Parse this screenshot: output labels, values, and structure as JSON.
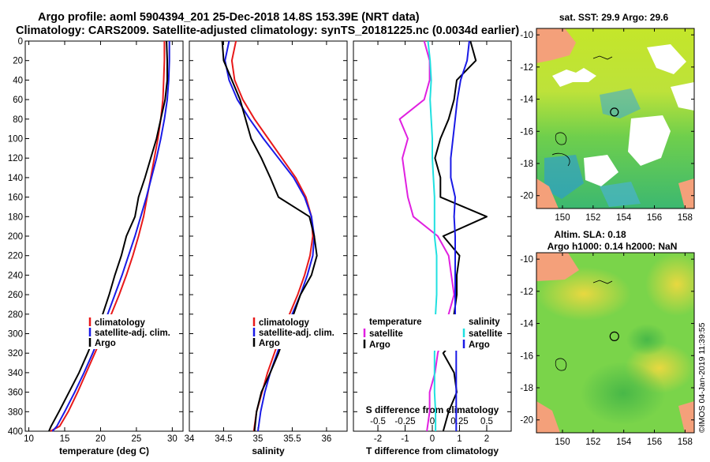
{
  "header": {
    "line1": "Argo profile: aoml 5904394_201 25-Dec-2018 14.8S 153.39E (NRT data)",
    "line2": "Climatology: CARS2009. Satellite-adjusted climatology: synTS_20181225.nc (0.0034d earlier)"
  },
  "colors": {
    "climatology": "#e8191a",
    "satellite": "#1a1ae6",
    "argo": "#000000",
    "temp_diff": "#e020e0",
    "sal_diff": "#20e0e0"
  },
  "chart_data": [
    {
      "type": "line",
      "title": "",
      "xlabel": "temperature (deg C)",
      "ylabel": "",
      "xlim": [
        9.5,
        31.5
      ],
      "ylim": [
        400,
        0
      ],
      "xticks": [
        "10",
        "15",
        "20",
        "25",
        "30"
      ],
      "yticks": [
        "0",
        "20",
        "40",
        "60",
        "80",
        "100",
        "120",
        "140",
        "160",
        "180",
        "200",
        "220",
        "240",
        "260",
        "280",
        "300",
        "320",
        "340",
        "360",
        "380",
        "400"
      ],
      "legend": [
        "climatology",
        "satellite-adj. clim.",
        "Argo"
      ],
      "series": [
        {
          "name": "climatology",
          "color": "#e8191a",
          "x": [
            28.9,
            28.9,
            28.8,
            28.7,
            28.4,
            28.0,
            27.5,
            27.0,
            26.5,
            26.0,
            25.3,
            24.5,
            23.6,
            22.6,
            21.5,
            20.4,
            19.2,
            18.0,
            16.8,
            15.5,
            14.3,
            13.0
          ],
          "y": [
            0,
            20,
            40,
            60,
            80,
            100,
            120,
            140,
            160,
            180,
            200,
            220,
            240,
            260,
            280,
            300,
            320,
            340,
            360,
            380,
            395,
            400
          ]
        },
        {
          "name": "satellite-adj. clim.",
          "color": "#1a1ae6",
          "x": [
            29.6,
            29.6,
            29.5,
            29.3,
            28.9,
            28.4,
            27.8,
            27.1,
            26.4,
            25.6,
            24.8,
            23.9,
            23.0,
            22.0,
            21.0,
            20.0,
            18.9,
            17.7,
            16.4,
            15.0,
            13.9,
            13.3
          ],
          "y": [
            0,
            20,
            40,
            60,
            80,
            100,
            120,
            140,
            160,
            180,
            200,
            220,
            240,
            260,
            280,
            300,
            320,
            340,
            360,
            380,
            395,
            400
          ]
        },
        {
          "name": "Argo",
          "color": "#000000",
          "x": [
            29.2,
            29.3,
            29.3,
            29.0,
            28.4,
            27.8,
            27.0,
            26.2,
            25.3,
            24.8,
            23.6,
            22.9,
            22.0,
            21.2,
            20.3,
            19.3,
            18.2,
            17.0,
            15.6,
            14.2,
            13.1,
            12.8
          ],
          "y": [
            0,
            20,
            40,
            60,
            80,
            100,
            120,
            140,
            160,
            180,
            200,
            220,
            240,
            260,
            280,
            300,
            320,
            340,
            360,
            380,
            395,
            400
          ]
        }
      ]
    },
    {
      "type": "line",
      "title": "",
      "xlabel": "salinity",
      "ylabel": "",
      "xlim": [
        34,
        36.3
      ],
      "ylim": [
        400,
        0
      ],
      "xticks": [
        "34",
        "34.5",
        "35",
        "35.5",
        "36"
      ],
      "legend": [
        "climatology",
        "satellite-adj. clim.",
        "Argo"
      ],
      "series": [
        {
          "name": "climatology",
          "color": "#e8191a",
          "x": [
            34.68,
            34.62,
            34.66,
            34.78,
            34.95,
            35.15,
            35.35,
            35.55,
            35.7,
            35.78,
            35.8,
            35.76,
            35.68,
            35.58,
            35.46,
            35.34,
            35.24,
            35.14,
            35.06,
            34.98,
            34.94
          ],
          "y": [
            0,
            20,
            40,
            60,
            80,
            100,
            120,
            140,
            160,
            180,
            200,
            220,
            240,
            260,
            280,
            300,
            320,
            340,
            360,
            380,
            400
          ]
        },
        {
          "name": "satellite-adj. clim.",
          "color": "#1a1ae6",
          "x": [
            34.58,
            34.52,
            34.58,
            34.7,
            34.88,
            35.08,
            35.3,
            35.52,
            35.68,
            35.78,
            35.82,
            35.8,
            35.72,
            35.62,
            35.5,
            35.38,
            35.28,
            35.18,
            35.1,
            35.04,
            35.0
          ],
          "y": [
            0,
            20,
            40,
            60,
            80,
            100,
            120,
            140,
            160,
            180,
            200,
            220,
            240,
            260,
            280,
            300,
            320,
            340,
            360,
            380,
            400
          ]
        },
        {
          "name": "Argo",
          "color": "#000000",
          "x": [
            34.48,
            34.5,
            34.62,
            34.74,
            34.82,
            34.9,
            35.05,
            35.18,
            35.3,
            35.75,
            35.82,
            35.86,
            35.78,
            35.62,
            35.52,
            35.4,
            35.3,
            35.18,
            35.05,
            34.98,
            34.95
          ],
          "y": [
            0,
            20,
            40,
            60,
            80,
            100,
            120,
            140,
            160,
            180,
            200,
            220,
            240,
            260,
            280,
            300,
            320,
            340,
            360,
            380,
            400
          ]
        }
      ]
    },
    {
      "type": "line",
      "title": "",
      "xlabel": "T difference from climatology",
      "xlabel_top": "S difference from climatology",
      "ylabel": "",
      "xlim": [
        -2.9,
        2.9
      ],
      "ylim": [
        400,
        0
      ],
      "xticks": [
        "-2",
        "-1",
        "0",
        "1",
        "2"
      ],
      "xticks_top": [
        "-0.5",
        "-0.25",
        "0",
        "0.25",
        "0.5"
      ],
      "legend": [
        "temperature",
        "satellite",
        "Argo",
        "salinity",
        "satellite",
        "Argo"
      ],
      "series": [
        {
          "name": "T satellite - clim",
          "color": "#e020e0",
          "x": [
            -0.3,
            -0.1,
            -0.1,
            -0.3,
            -1.2,
            -0.9,
            -1.1,
            -1.0,
            -0.9,
            -0.7,
            0.2,
            0.6,
            0.7,
            0.8,
            0.6,
            0.4,
            0.2,
            0.1,
            -0.1,
            -0.1,
            -0.2
          ],
          "y": [
            0,
            20,
            40,
            60,
            80,
            100,
            120,
            140,
            160,
            180,
            200,
            220,
            240,
            260,
            280,
            300,
            320,
            340,
            360,
            380,
            400
          ]
        },
        {
          "name": "T Argo - clim",
          "color": "#000000",
          "x": [
            1.4,
            1.6,
            0.9,
            0.8,
            0.6,
            0.3,
            0.1,
            0.3,
            0.3,
            2.0,
            0.4,
            1.0,
            0.9,
            0.9,
            0.8,
            1.0,
            0.4,
            0.8,
            0.9,
            0.6,
            0.4
          ],
          "y": [
            0,
            20,
            40,
            60,
            80,
            100,
            120,
            140,
            160,
            180,
            200,
            220,
            240,
            260,
            280,
            300,
            320,
            340,
            360,
            380,
            400
          ]
        },
        {
          "name": "S satellite - clim",
          "color": "#20e0e0",
          "x": [
            -0.04,
            -0.02,
            -0.01,
            -0.02,
            -0.01,
            0.0,
            0.0,
            0.01,
            0.02,
            0.02,
            0.02,
            0.04,
            0.04,
            0.04,
            0.03,
            0.03,
            0.02,
            0.02,
            0.02,
            0.03,
            0.03
          ],
          "y": [
            0,
            20,
            40,
            60,
            80,
            100,
            120,
            140,
            160,
            180,
            200,
            220,
            240,
            260,
            280,
            300,
            320,
            340,
            360,
            380,
            400
          ]
        },
        {
          "name": "S Argo - clim",
          "color": "#1a1ae6",
          "x": [
            0.34,
            0.32,
            0.26,
            0.23,
            0.21,
            0.19,
            0.17,
            0.17,
            0.21,
            0.2,
            0.21,
            0.21,
            0.21,
            0.21,
            0.21,
            0.22,
            0.22,
            0.22,
            0.22,
            0.22,
            0.22
          ],
          "y": [
            0,
            20,
            40,
            60,
            80,
            100,
            120,
            140,
            160,
            180,
            200,
            220,
            240,
            260,
            280,
            300,
            320,
            340,
            360,
            380,
            400
          ]
        }
      ]
    },
    {
      "type": "heatmap",
      "title": "sat. SST: 29.9 Argo: 29.6",
      "xlabel": "",
      "ylabel": "",
      "xlim": [
        148.3,
        158.6
      ],
      "ylim": [
        -20.8,
        -9.6
      ],
      "xticks": [
        "150",
        "152",
        "154",
        "156",
        "158"
      ],
      "yticks": [
        "-10",
        "-12",
        "-14",
        "-16",
        "-18",
        "-20"
      ],
      "marker": {
        "lon": 153.39,
        "lat": -14.8
      }
    },
    {
      "type": "heatmap",
      "title": "Altim. SLA: 0.18",
      "subtitle": "Argo h1000: 0.14 h2000: NaN",
      "xlabel": "",
      "ylabel": "",
      "xlim": [
        148.3,
        158.6
      ],
      "ylim": [
        -20.8,
        -9.6
      ],
      "xticks": [
        "150",
        "152",
        "154",
        "156",
        "158"
      ],
      "yticks": [
        "-10",
        "-12",
        "-14",
        "-16",
        "-18",
        "-20"
      ],
      "marker": {
        "lon": 153.39,
        "lat": -14.8
      }
    }
  ],
  "watermark": "©IMOS 04-Jan-2019 11:39:55"
}
